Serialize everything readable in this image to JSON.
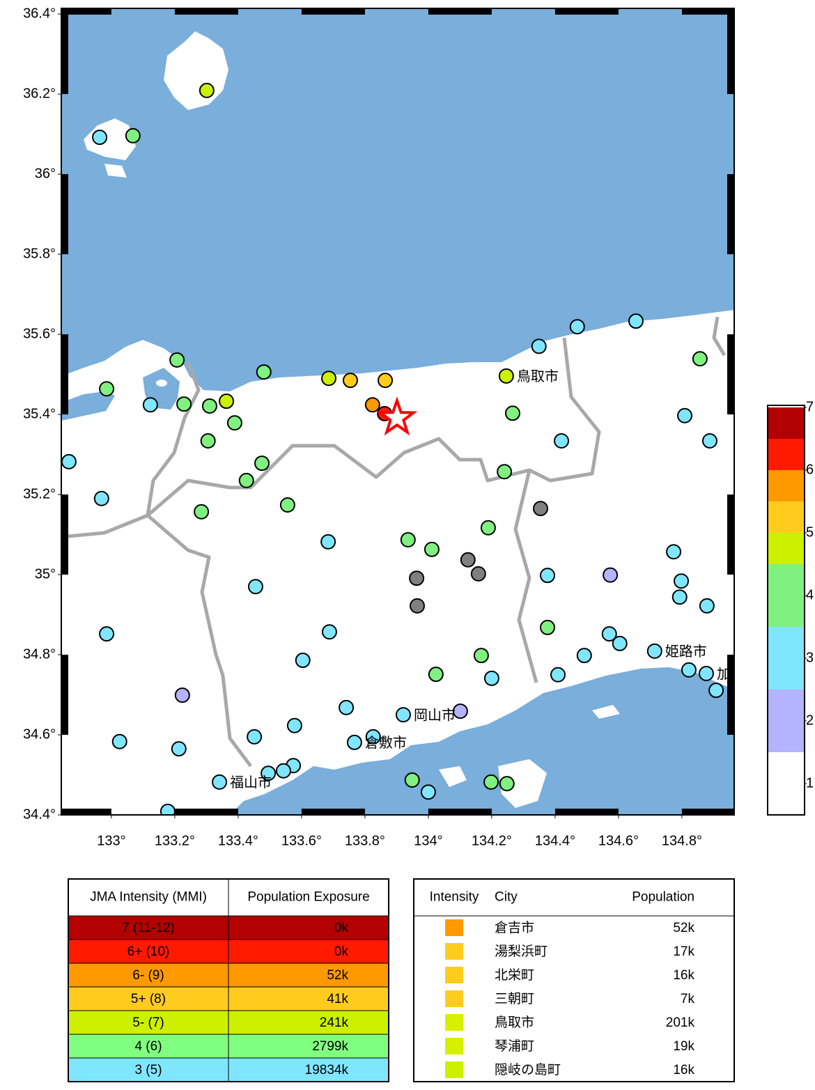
{
  "map": {
    "lon_range": [
      132.842,
      134.965
    ],
    "lat_range": [
      34.4,
      36.414
    ],
    "lon_ticks": [
      {
        "value": 133,
        "label": "133°"
      },
      {
        "value": 133.2,
        "label": "133.2°"
      },
      {
        "value": 133.4,
        "label": "133.4°"
      },
      {
        "value": 133.6,
        "label": "133.6°"
      },
      {
        "value": 133.8,
        "label": "133.8°"
      },
      {
        "value": 134,
        "label": "134°"
      },
      {
        "value": 134.2,
        "label": "134.2°"
      },
      {
        "value": 134.4,
        "label": "134.4°"
      },
      {
        "value": 134.6,
        "label": "134.6°"
      },
      {
        "value": 134.8,
        "label": "134.8°"
      }
    ],
    "lat_ticks": [
      {
        "value": 36.4,
        "label": "36.4°"
      },
      {
        "value": 36.2,
        "label": "36.2°"
      },
      {
        "value": 36,
        "label": "36°"
      },
      {
        "value": 35.8,
        "label": "35.8°"
      },
      {
        "value": 35.6,
        "label": "35.6°"
      },
      {
        "value": 35.4,
        "label": "35.4°"
      },
      {
        "value": 35.2,
        "label": "35.2°"
      },
      {
        "value": 35,
        "label": "35°"
      },
      {
        "value": 34.8,
        "label": "34.8°"
      },
      {
        "value": 34.6,
        "label": "34.6°"
      },
      {
        "value": 34.4,
        "label": "34.4°"
      }
    ],
    "stations": [
      {
        "lon": 133.301,
        "lat": 36.209,
        "intensity": 4.75
      },
      {
        "lon": 132.963,
        "lat": 36.092,
        "intensity": 3
      },
      {
        "lon": 133.068,
        "lat": 36.096,
        "intensity": 4
      },
      {
        "lon": 132.985,
        "lat": 35.464,
        "intensity": 4
      },
      {
        "lon": 133.123,
        "lat": 35.424,
        "intensity": 3
      },
      {
        "lon": 133.207,
        "lat": 35.536,
        "intensity": 4
      },
      {
        "lon": 133.229,
        "lat": 35.426,
        "intensity": 4
      },
      {
        "lon": 133.31,
        "lat": 35.421,
        "intensity": 4
      },
      {
        "lon": 133.363,
        "lat": 35.433,
        "intensity": 4.75
      },
      {
        "lon": 133.389,
        "lat": 35.379,
        "intensity": 4
      },
      {
        "lon": 133.305,
        "lat": 35.334,
        "intensity": 4
      },
      {
        "lon": 133.481,
        "lat": 35.506,
        "intensity": 4
      },
      {
        "lon": 133.686,
        "lat": 35.49,
        "intensity": 4.75
      },
      {
        "lon": 133.754,
        "lat": 35.485,
        "intensity": 5.25
      },
      {
        "lon": 133.864,
        "lat": 35.485,
        "intensity": 5.25
      },
      {
        "lon": 133.824,
        "lat": 35.424,
        "intensity": 5.75
      },
      {
        "lon": 133.862,
        "lat": 35.402,
        "intensity": 6.25
      },
      {
        "lon": 134.246,
        "lat": 35.496,
        "intensity": 4.75
      },
      {
        "lon": 134.349,
        "lat": 35.57,
        "intensity": 3
      },
      {
        "lon": 134.47,
        "lat": 35.619,
        "intensity": 3
      },
      {
        "lon": 134.655,
        "lat": 35.633,
        "intensity": 3
      },
      {
        "lon": 134.857,
        "lat": 35.539,
        "intensity": 4
      },
      {
        "lon": 134.266,
        "lat": 35.403,
        "intensity": 4
      },
      {
        "lon": 134.809,
        "lat": 35.397,
        "intensity": 3
      },
      {
        "lon": 134.888,
        "lat": 35.334,
        "intensity": 3
      },
      {
        "lon": 134.42,
        "lat": 35.334,
        "intensity": 3
      },
      {
        "lon": 134.24,
        "lat": 35.257,
        "intensity": 4
      },
      {
        "lon": 132.866,
        "lat": 35.282,
        "intensity": 3
      },
      {
        "lon": 132.969,
        "lat": 35.19,
        "intensity": 3
      },
      {
        "lon": 133.475,
        "lat": 35.278,
        "intensity": 4
      },
      {
        "lon": 133.426,
        "lat": 35.235,
        "intensity": 4
      },
      {
        "lon": 133.556,
        "lat": 35.174,
        "intensity": 4
      },
      {
        "lon": 133.284,
        "lat": 35.157,
        "intensity": 4
      },
      {
        "lon": 134.354,
        "lat": 35.165,
        "intensity": null
      },
      {
        "lon": 134.189,
        "lat": 35.117,
        "intensity": 4
      },
      {
        "lon": 133.684,
        "lat": 35.082,
        "intensity": 3
      },
      {
        "lon": 133.936,
        "lat": 35.087,
        "intensity": 4
      },
      {
        "lon": 134.011,
        "lat": 35.063,
        "intensity": 4
      },
      {
        "lon": 134.125,
        "lat": 35.037,
        "intensity": null
      },
      {
        "lon": 134.158,
        "lat": 35.002,
        "intensity": null
      },
      {
        "lon": 133.963,
        "lat": 34.991,
        "intensity": null
      },
      {
        "lon": 133.965,
        "lat": 34.922,
        "intensity": null
      },
      {
        "lon": 133.455,
        "lat": 34.97,
        "intensity": 3
      },
      {
        "lon": 134.376,
        "lat": 34.998,
        "intensity": 3
      },
      {
        "lon": 134.574,
        "lat": 34.999,
        "intensity": 2
      },
      {
        "lon": 134.774,
        "lat": 35.057,
        "intensity": 3
      },
      {
        "lon": 134.798,
        "lat": 34.984,
        "intensity": 3
      },
      {
        "lon": 134.793,
        "lat": 34.944,
        "intensity": 3
      },
      {
        "lon": 134.879,
        "lat": 34.922,
        "intensity": 3
      },
      {
        "lon": 132.985,
        "lat": 34.852,
        "intensity": 3
      },
      {
        "lon": 133.688,
        "lat": 34.857,
        "intensity": 3
      },
      {
        "lon": 134.376,
        "lat": 34.868,
        "intensity": 4
      },
      {
        "lon": 134.571,
        "lat": 34.852,
        "intensity": 3
      },
      {
        "lon": 134.604,
        "lat": 34.828,
        "intensity": 3
      },
      {
        "lon": 134.714,
        "lat": 34.809,
        "intensity": 3
      },
      {
        "lon": 134.492,
        "lat": 34.798,
        "intensity": 3
      },
      {
        "lon": 133.604,
        "lat": 34.786,
        "intensity": 3
      },
      {
        "lon": 134.167,
        "lat": 34.798,
        "intensity": 4
      },
      {
        "lon": 134.024,
        "lat": 34.751,
        "intensity": 4
      },
      {
        "lon": 134.2,
        "lat": 34.741,
        "intensity": 3
      },
      {
        "lon": 134.409,
        "lat": 34.75,
        "intensity": 3
      },
      {
        "lon": 134.822,
        "lat": 34.762,
        "intensity": 3
      },
      {
        "lon": 134.877,
        "lat": 34.753,
        "intensity": 3
      },
      {
        "lon": 134.908,
        "lat": 34.711,
        "intensity": 3
      },
      {
        "lon": 133.224,
        "lat": 34.699,
        "intensity": 2
      },
      {
        "lon": 133.741,
        "lat": 34.668,
        "intensity": 3
      },
      {
        "lon": 133.921,
        "lat": 34.65,
        "intensity": 3
      },
      {
        "lon": 134.101,
        "lat": 34.659,
        "intensity": 2
      },
      {
        "lon": 133.578,
        "lat": 34.623,
        "intensity": 3
      },
      {
        "lon": 133.451,
        "lat": 34.595,
        "intensity": 3
      },
      {
        "lon": 133.826,
        "lat": 34.595,
        "intensity": 3
      },
      {
        "lon": 133.767,
        "lat": 34.581,
        "intensity": 3
      },
      {
        "lon": 133.026,
        "lat": 34.583,
        "intensity": 3
      },
      {
        "lon": 133.213,
        "lat": 34.565,
        "intensity": 3
      },
      {
        "lon": 133.574,
        "lat": 34.523,
        "intensity": 3
      },
      {
        "lon": 133.543,
        "lat": 34.51,
        "intensity": 3
      },
      {
        "lon": 133.495,
        "lat": 34.504,
        "intensity": 3
      },
      {
        "lon": 133.341,
        "lat": 34.482,
        "intensity": 3
      },
      {
        "lon": 133.949,
        "lat": 34.487,
        "intensity": 4
      },
      {
        "lon": 134.0,
        "lat": 34.457,
        "intensity": 3
      },
      {
        "lon": 134.198,
        "lat": 34.482,
        "intensity": 4
      },
      {
        "lon": 134.248,
        "lat": 34.478,
        "intensity": 4
      },
      {
        "lon": 133.178,
        "lat": 34.409,
        "intensity": 3
      }
    ],
    "epicenter": {
      "lon": 133.901,
      "lat": 35.391
    },
    "cities": [
      {
        "name": "鳥取市",
        "lon": 134.246,
        "lat": 35.496
      },
      {
        "name": "姫路市",
        "lon": 134.714,
        "lat": 34.809
      },
      {
        "name": "岡山市",
        "lon": 133.921,
        "lat": 34.65
      },
      {
        "name": "倉敷市",
        "lon": 133.767,
        "lat": 34.581
      },
      {
        "name": "福山市",
        "lon": 133.341,
        "lat": 34.482
      },
      {
        "name": "加",
        "lon": 134.877,
        "lat": 34.753
      }
    ]
  },
  "colorbar": {
    "bounds": [
      0.5,
      1.5,
      2.5,
      3.5,
      4.5,
      5,
      5.5,
      6,
      6.5,
      7
    ],
    "colors": [
      "#ffffff",
      "#b3b3ff",
      "#80e6ff",
      "#80f080",
      "#ccf000",
      "#ffcc1e",
      "#ff9900",
      "#ff1a00",
      "#b30000"
    ],
    "ticks": [
      1,
      2,
      3,
      4,
      5,
      6,
      7
    ],
    "no_data_color": "#808080"
  },
  "exposure_table": {
    "headers": [
      "JMA Intensity (MMI)",
      "Population Exposure"
    ],
    "rows": [
      {
        "cells": [
          "7 (11-12)",
          "0k"
        ],
        "color": "#b30000"
      },
      {
        "cells": [
          "6+ (10)",
          "0k"
        ],
        "color": "#ff1a00"
      },
      {
        "cells": [
          "6- (9)",
          "52k"
        ],
        "color": "#ff9900"
      },
      {
        "cells": [
          "5+ (8)",
          "41k"
        ],
        "color": "#ffcc1e"
      },
      {
        "cells": [
          "5- (7)",
          "241k"
        ],
        "color": "#ccf000"
      },
      {
        "cells": [
          "4 (6)",
          "2799k"
        ],
        "color": "#80ff80"
      },
      {
        "cells": [
          "3 (5)",
          "19834k"
        ],
        "color": "#80e6ff"
      }
    ]
  },
  "city_table": {
    "headers": [
      "Intensity",
      "City",
      "Population"
    ],
    "rows": [
      {
        "color": "#ff9900",
        "city": "倉吉市",
        "population": "52k"
      },
      {
        "color": "#ffcc1e",
        "city": "湯梨浜町",
        "population": "17k"
      },
      {
        "color": "#ffcc1e",
        "city": "北栄町",
        "population": "16k"
      },
      {
        "color": "#ffcc1e",
        "city": "三朝町",
        "population": "7k"
      },
      {
        "color": "#d7f000",
        "city": "鳥取市",
        "population": "201k"
      },
      {
        "color": "#d7f000",
        "city": "琴浦町",
        "population": "19k"
      },
      {
        "color": "#ccf000",
        "city": "隠岐の島町",
        "population": "16k"
      }
    ]
  }
}
